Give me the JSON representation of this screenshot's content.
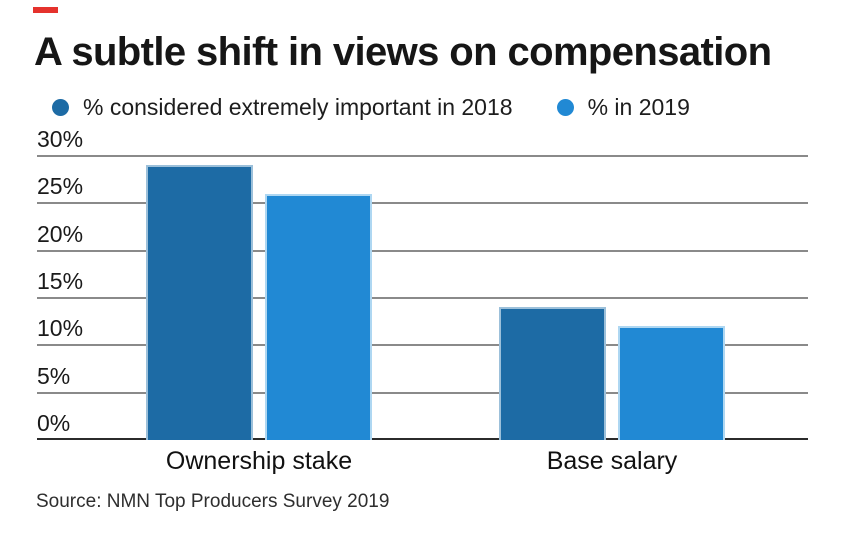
{
  "brand": {
    "accent_color": "#e5322d"
  },
  "chart_data": {
    "type": "bar",
    "title": "A subtle shift in views on compensation",
    "categories": [
      "Ownership stake",
      "Base salary"
    ],
    "series": [
      {
        "name": "% considered extremely important in 2018",
        "color": "#1d6ba5",
        "edge_color": "#9cc0da",
        "values": [
          29,
          14
        ]
      },
      {
        "name": "% in 2019",
        "color": "#2189d4",
        "edge_color": "#aed7f2",
        "values": [
          26,
          12
        ]
      }
    ],
    "ylim": [
      0,
      30
    ],
    "yticks": [
      {
        "value": 30,
        "label": "30%"
      },
      {
        "value": 25,
        "label": "25%"
      },
      {
        "value": 20,
        "label": "20%"
      },
      {
        "value": 15,
        "label": "15%"
      },
      {
        "value": 10,
        "label": "10%"
      },
      {
        "value": 5,
        "label": "5%"
      },
      {
        "value": 0,
        "label": "0%"
      }
    ],
    "grid": "on",
    "legend_position": "top"
  },
  "source": {
    "label": "Source: NMN Top Producers Survey 2019"
  }
}
